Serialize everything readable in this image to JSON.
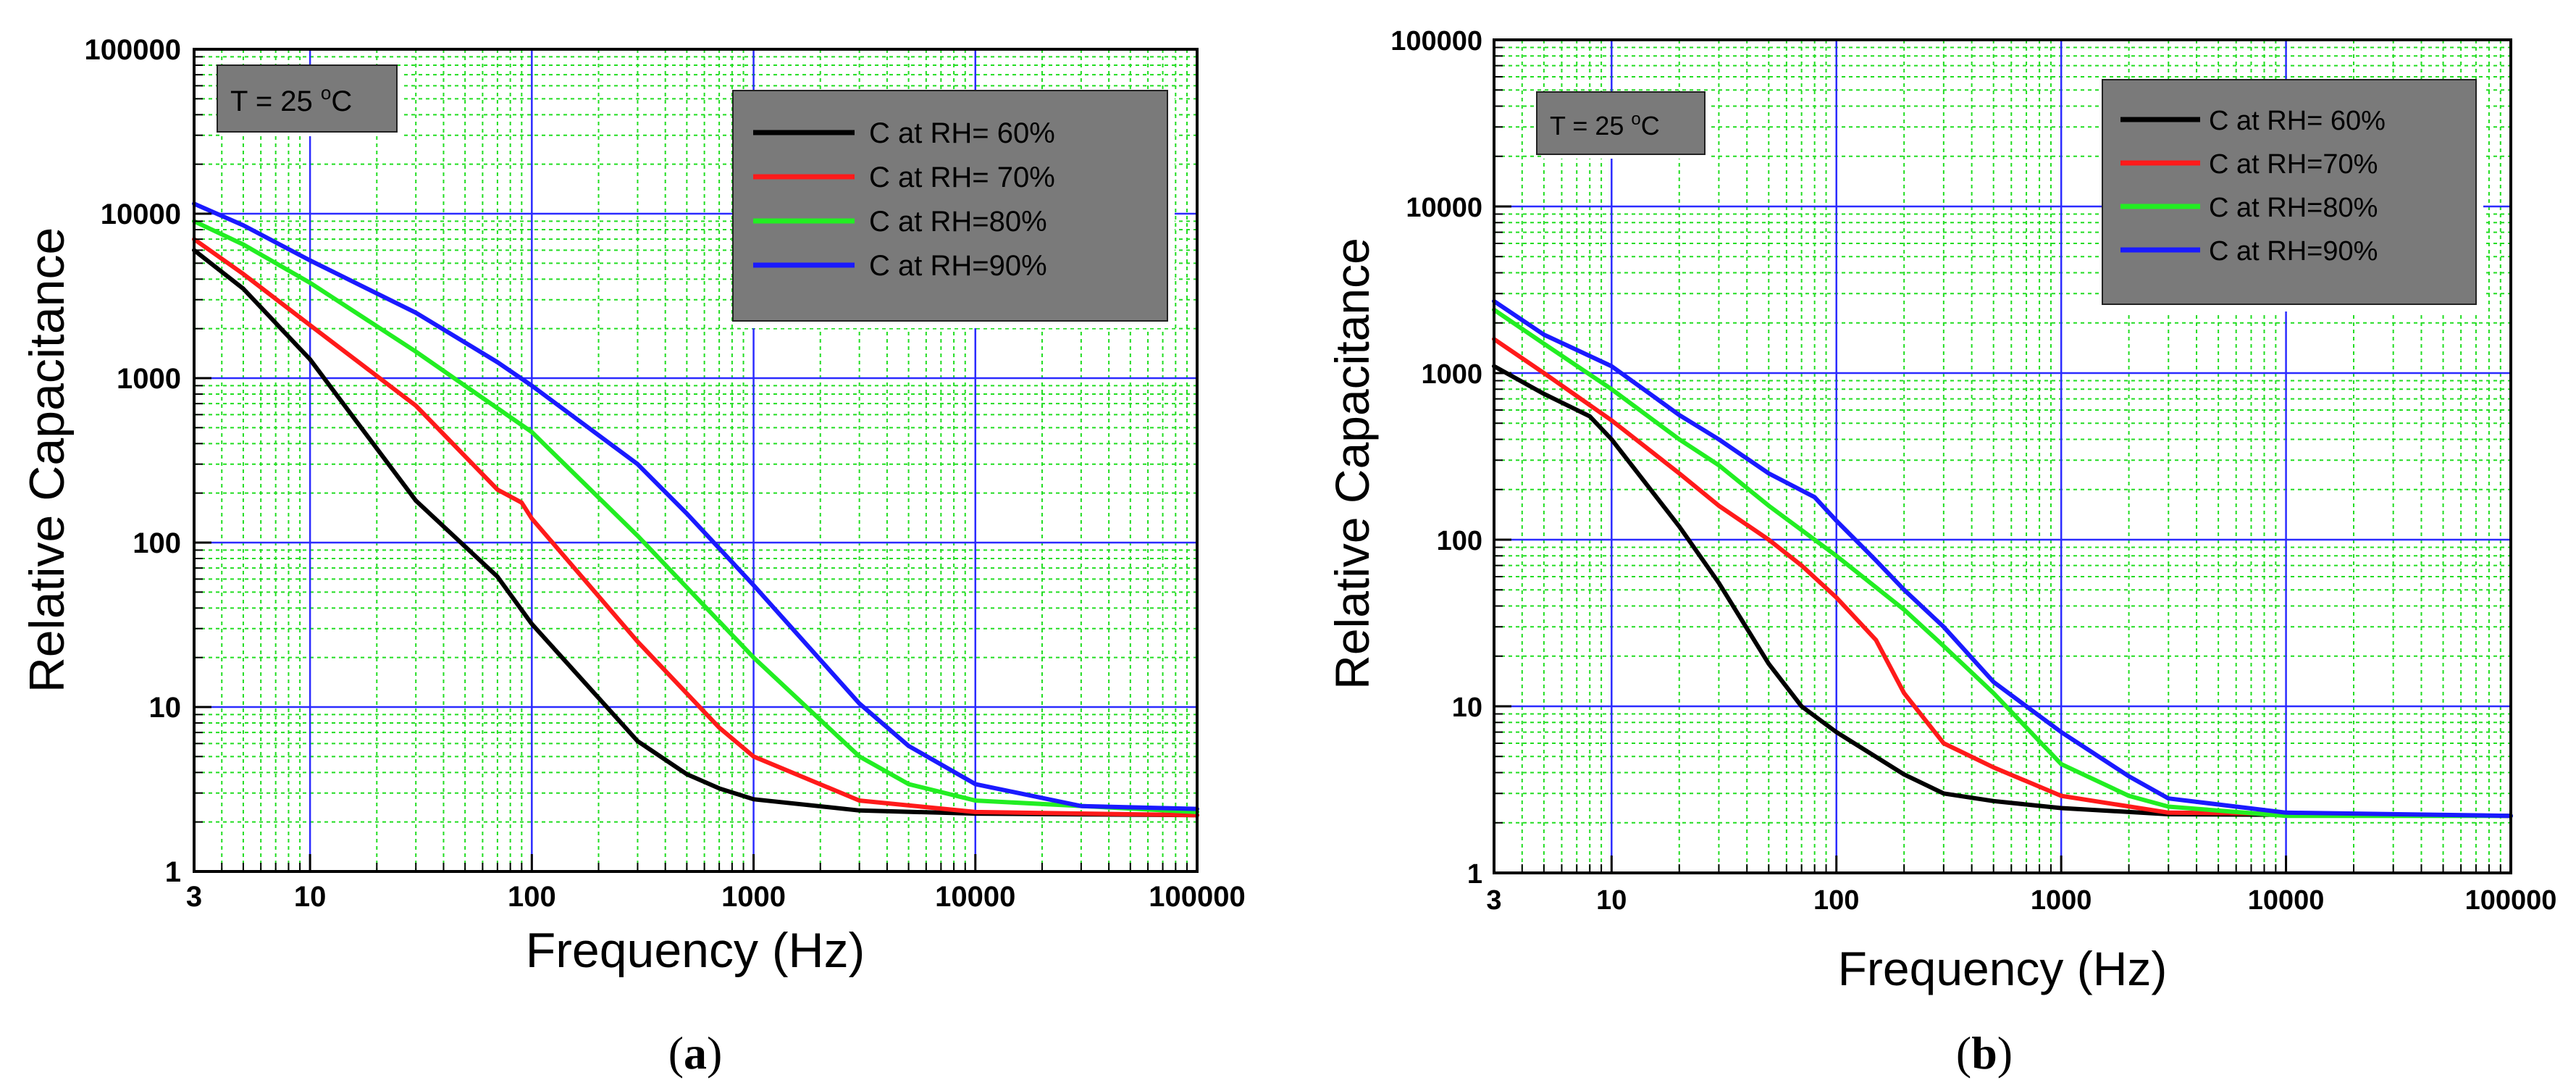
{
  "colors": {
    "grid_major": "#2b2bff",
    "grid_minor": "#22dd22",
    "box_fill": "#7a7a7a",
    "axis": "#000000"
  },
  "chart_data": [
    {
      "panel": "a",
      "caption": {
        "open": "(",
        "letter": "a",
        "close": ")"
      },
      "type": "line",
      "xscale": "log",
      "yscale": "log",
      "xlim": [
        3,
        100000
      ],
      "ylim": [
        1,
        100000
      ],
      "xlabel": "Frequency (Hz)",
      "ylabel": "Relative Capacitance",
      "x_ticks": [
        "3",
        "10",
        "100",
        "1000",
        "10000",
        "100000"
      ],
      "y_ticks": [
        "1",
        "10",
        "100",
        "1000",
        "10000",
        "100000"
      ],
      "annotation": {
        "prefix": "T = 25 ",
        "degree": "o",
        "suffix": "C"
      },
      "legend_position": "top-right",
      "series": [
        {
          "name": "C at RH= 60%",
          "color": "#000000",
          "x": [
            3,
            5,
            10,
            30,
            70,
            100,
            300,
            500,
            700,
            1000,
            3000,
            10000,
            100000
          ],
          "y": [
            6000,
            3500,
            1300,
            180,
            62,
            32,
            6.2,
            3.9,
            3.2,
            2.75,
            2.35,
            2.25,
            2.2
          ]
        },
        {
          "name": "C at RH= 70%",
          "color": "#ff1a1a",
          "x": [
            3,
            5,
            10,
            30,
            70,
            90,
            100,
            300,
            700,
            1000,
            3000,
            10000,
            100000
          ],
          "y": [
            7000,
            4300,
            2100,
            680,
            210,
            175,
            140,
            25,
            7.5,
            5,
            2.7,
            2.3,
            2.2
          ]
        },
        {
          "name": "C at RH=80%",
          "color": "#22ee22",
          "x": [
            3,
            5,
            10,
            30,
            100,
            300,
            1000,
            3000,
            5000,
            10000,
            100000
          ],
          "y": [
            9000,
            6500,
            3800,
            1450,
            470,
            110,
            20,
            5,
            3.4,
            2.7,
            2.3
          ]
        },
        {
          "name": "C at RH=90%",
          "color": "#1a1aff",
          "x": [
            3,
            5,
            10,
            30,
            70,
            100,
            300,
            500,
            1000,
            3000,
            5000,
            10000,
            30000,
            100000
          ],
          "y": [
            11500,
            8500,
            5200,
            2500,
            1250,
            900,
            300,
            150,
            55,
            10.5,
            5.8,
            3.4,
            2.5,
            2.4
          ]
        }
      ]
    },
    {
      "panel": "b",
      "caption": {
        "open": "(",
        "letter": "b",
        "close": ")"
      },
      "type": "line",
      "xscale": "log",
      "yscale": "log",
      "xlim": [
        3,
        100000
      ],
      "ylim": [
        1,
        100000
      ],
      "xlabel": "Frequency (Hz)",
      "ylabel": "Relative Capacitance",
      "x_ticks": [
        "3",
        "10",
        "100",
        "1000",
        "10000",
        "100000"
      ],
      "y_ticks": [
        "1",
        "10",
        "100",
        "1000",
        "10000",
        "100000"
      ],
      "annotation": {
        "prefix": "T = 25 ",
        "degree": "o",
        "suffix": "C"
      },
      "legend_position": "top-right",
      "series": [
        {
          "name": "C at RH= 60%",
          "color": "#000000",
          "x": [
            3,
            5,
            8,
            10,
            20,
            30,
            50,
            70,
            100,
            200,
            300,
            500,
            1000,
            3000,
            100000
          ],
          "y": [
            1100,
            750,
            550,
            400,
            120,
            55,
            18,
            10,
            7,
            3.9,
            3,
            2.7,
            2.45,
            2.25,
            2.2
          ]
        },
        {
          "name": "C at RH=70%",
          "color": "#ff1a1a",
          "x": [
            3,
            5,
            10,
            20,
            30,
            50,
            70,
            100,
            150,
            200,
            300,
            500,
            1000,
            3000,
            100000
          ],
          "y": [
            1600,
            1000,
            520,
            250,
            160,
            100,
            70,
            45,
            25,
            12,
            6,
            4.3,
            2.9,
            2.3,
            2.2
          ]
        },
        {
          "name": "C at RH=80%",
          "color": "#22ee22",
          "x": [
            3,
            5,
            10,
            20,
            30,
            50,
            100,
            200,
            300,
            500,
            1000,
            2000,
            3000,
            10000,
            100000
          ],
          "y": [
            2400,
            1500,
            800,
            400,
            280,
            160,
            80,
            38,
            23,
            12,
            4.5,
            2.9,
            2.5,
            2.2,
            2.2
          ]
        },
        {
          "name": "C at RH=90%",
          "color": "#1a1aff",
          "x": [
            3,
            5,
            10,
            20,
            30,
            50,
            80,
            100,
            150,
            200,
            300,
            500,
            1000,
            2000,
            3000,
            10000,
            100000
          ],
          "y": [
            2700,
            1700,
            1100,
            560,
            400,
            250,
            180,
            130,
            75,
            50,
            30,
            14,
            7,
            3.8,
            2.8,
            2.3,
            2.2
          ]
        }
      ]
    }
  ]
}
